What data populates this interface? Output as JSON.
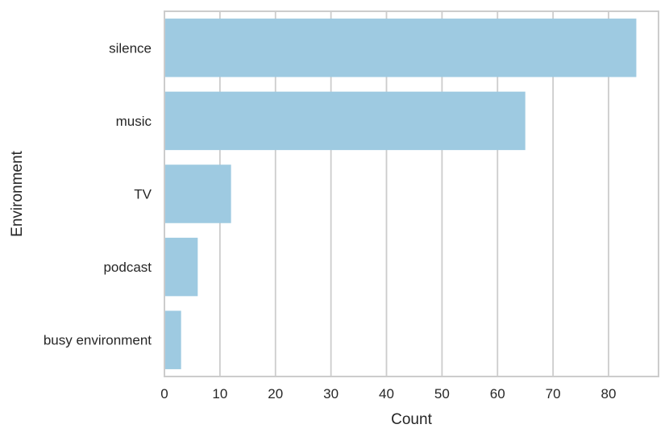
{
  "chart_data": {
    "type": "bar",
    "orientation": "horizontal",
    "categories": [
      "silence",
      "music",
      "TV",
      "podcast",
      "busy environment"
    ],
    "values": [
      85,
      65,
      12,
      6,
      3
    ],
    "title": "",
    "xlabel": "Count",
    "ylabel": "Environment",
    "xlim": [
      0,
      89
    ],
    "xticks": [
      0,
      10,
      20,
      30,
      40,
      50,
      60,
      70,
      80
    ],
    "grid": true,
    "bar_color": "#9ecae1",
    "grid_color": "#cccccc",
    "spine_color": "#cccccc"
  }
}
